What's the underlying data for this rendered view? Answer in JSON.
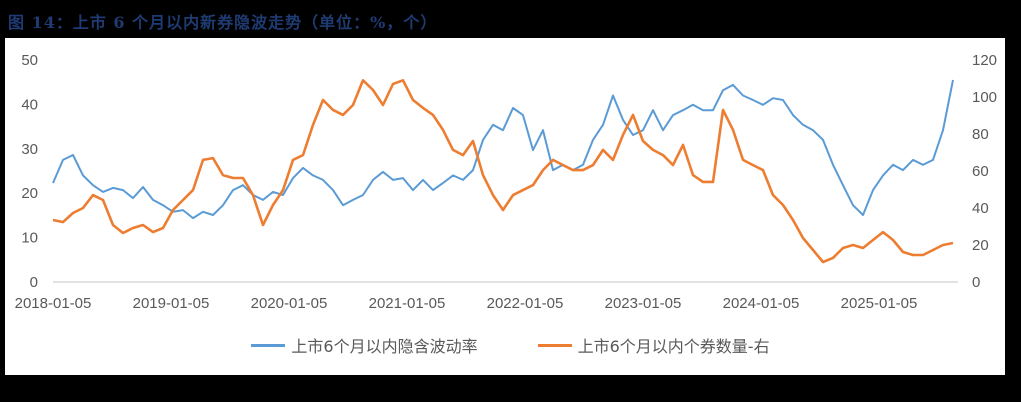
{
  "title": "图 14：上市 6 个月以内新券隐波走势（单位：%，个）",
  "colors": {
    "series1": "#5b9bd5",
    "series2": "#ed7d31",
    "grid": "#d9d9d9",
    "tick": "#595959",
    "title": "#1f3b73"
  },
  "legend": [
    {
      "label": "上市6个月以内隐含波动率",
      "color": "#5b9bd5"
    },
    {
      "label": "上市6个月以内个券数量-右",
      "color": "#ed7d31"
    }
  ],
  "chart_data": {
    "type": "line",
    "title": "图 14：上市 6 个月以内新券隐波走势（单位：%，个）",
    "xlabel": "",
    "ylabel": "",
    "x_tick_labels": [
      "2018-01-05",
      "2019-01-05",
      "2020-01-05",
      "2021-01-05",
      "2022-01-05",
      "2023-01-05",
      "2024-01-05",
      "2025-01-05"
    ],
    "y_left": {
      "ticks": [
        0,
        10,
        20,
        30,
        40,
        50
      ],
      "ylim": [
        0,
        50
      ]
    },
    "y_right": {
      "ticks": [
        0,
        20,
        40,
        60,
        80,
        100,
        120
      ],
      "ylim": [
        0,
        120
      ]
    },
    "grid": false,
    "legend_position": "bottom",
    "x_start": "2018-01-05",
    "x_step": "~monthly",
    "series": [
      {
        "name": "上市6个月以内隐含波动率",
        "axis": "left",
        "values": [
          22.3,
          27.5,
          28.6,
          24,
          21.8,
          20.3,
          21.2,
          20.7,
          18.9,
          21.4,
          18.5,
          17.3,
          15.8,
          16.2,
          14.4,
          15.8,
          15.1,
          17.3,
          20.7,
          21.8,
          19.6,
          18.5,
          20.3,
          19.6,
          23.4,
          25.7,
          24,
          23,
          20.7,
          17.3,
          18.5,
          19.6,
          23,
          24.8,
          23,
          23.4,
          20.7,
          23,
          20.7,
          22.3,
          24,
          23,
          25.2,
          32,
          35.4,
          34.2,
          39.2,
          37.6,
          29.7,
          34.2,
          25.2,
          26.4,
          25.2,
          26.4,
          32,
          35.4,
          42,
          36.5,
          33.1,
          34.2,
          38.7,
          34.2,
          37.6,
          38.7,
          39.9,
          38.7,
          38.7,
          43.2,
          44.4,
          42,
          41,
          39.9,
          41.4,
          41,
          37.6,
          35.4,
          34.2,
          32,
          26.4,
          21.8,
          17.3,
          15.1,
          20.7,
          24,
          26.4,
          25.2,
          27.5,
          26.4,
          27.5,
          34.2,
          45.5
        ]
      },
      {
        "name": "上市6个月以内个券数量-右",
        "axis": "right",
        "values": [
          33.5,
          32.4,
          37.3,
          40,
          47,
          44.3,
          30.8,
          26.5,
          29.2,
          30.8,
          27,
          29.2,
          38.9,
          44.3,
          49.7,
          66,
          67,
          57.8,
          56.2,
          56.2,
          47,
          30.8,
          41.6,
          49.7,
          66,
          68.6,
          84.9,
          98.4,
          93,
          90.3,
          95.7,
          109,
          103.8,
          95.7,
          107,
          109,
          98.4,
          94.1,
          90.3,
          82.2,
          71.4,
          68.6,
          76.2,
          57.8,
          47,
          38.9,
          47,
          49.7,
          52.4,
          60.5,
          66,
          63.2,
          60.5,
          60.5,
          63.2,
          71.4,
          66,
          79.5,
          90.3,
          76.2,
          71.4,
          68.6,
          63.2,
          74.1,
          57.8,
          54.1,
          54.1,
          93,
          82.2,
          66,
          63.2,
          60.5,
          47,
          41.6,
          33.5,
          23.8,
          17.3,
          10.8,
          13,
          18.4,
          20,
          18.4,
          22.7,
          27,
          22.7,
          16.2,
          14.6,
          14.6,
          17.3,
          20,
          21.1
        ]
      }
    ]
  }
}
